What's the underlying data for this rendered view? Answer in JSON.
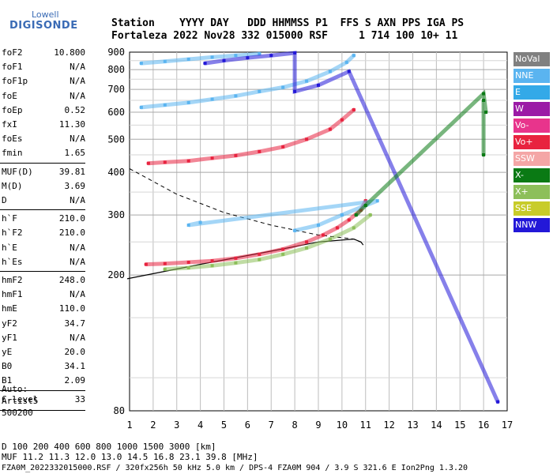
{
  "logo": {
    "brand": "Lowell",
    "product": "DIGISONDE"
  },
  "header": {
    "row1": "Station    YYYY DAY   DDD HHMMSS P1  FFS S AXN PPS IGA PS",
    "row2": "Fortaleza 2022 Nov28 332 015000 RSF     1 714 100 10+ 11"
  },
  "params": {
    "group1": [
      {
        "label": "foF2",
        "value": "10.800"
      },
      {
        "label": "foF1",
        "value": "N/A"
      },
      {
        "label": "foF1p",
        "value": "N/A"
      },
      {
        "label": "foE",
        "value": "N/A"
      },
      {
        "label": "foEp",
        "value": "0.52"
      },
      {
        "label": "fxI",
        "value": "11.30"
      },
      {
        "label": "foEs",
        "value": "N/A"
      },
      {
        "label": "fmin",
        "value": "1.65"
      }
    ],
    "group2": [
      {
        "label": "MUF(D)",
        "value": "39.81"
      },
      {
        "label": "M(D)",
        "value": "3.69"
      },
      {
        "label": "D",
        "value": "N/A"
      }
    ],
    "group3": [
      {
        "label": "h`F",
        "value": "210.0"
      },
      {
        "label": "h`F2",
        "value": "210.0"
      },
      {
        "label": "h`E",
        "value": "N/A"
      },
      {
        "label": "h`Es",
        "value": "N/A"
      }
    ],
    "group4": [
      {
        "label": "hmF2",
        "value": "248.0"
      },
      {
        "label": "hmF1",
        "value": "N/A"
      },
      {
        "label": "hmE",
        "value": "110.0"
      },
      {
        "label": "yF2",
        "value": "34.7"
      },
      {
        "label": "yF1",
        "value": "N/A"
      },
      {
        "label": "yE",
        "value": "20.0"
      },
      {
        "label": "B0",
        "value": "34.1"
      },
      {
        "label": "B1",
        "value": "2.09"
      }
    ],
    "clevel": {
      "label": "C-level",
      "value": "33"
    }
  },
  "autoscale": {
    "line1": "Auto:",
    "line2": "Artist5",
    "line3": "500200"
  },
  "footer": {
    "d_row": "D      100  200  400  600  800 1000 1500 3000 [km]",
    "muf_row": "MUF  11.2 11.3 12.0 13.0 14.5 16.8 23.1 39.8 [MHz]",
    "file_row": "FZA0M_2022332015000.RSF / 320fx256h 50 kHz 5.0 km / DPS-4 FZA0M 904 / 3.9 S 321.6 E  Ion2Png 1.3.20"
  },
  "legend": [
    {
      "name": "NoVal",
      "color": "#808080",
      "text": "#ffffff"
    },
    {
      "name": "NNE",
      "color": "#5ab4f0",
      "text": "#ffffff"
    },
    {
      "name": "E",
      "color": "#33a9e8",
      "text": "#ffffff"
    },
    {
      "name": "W",
      "color": "#9b1aa6",
      "text": "#ffffff"
    },
    {
      "name": "Vo-",
      "color": "#e8348c",
      "text": "#ffffff"
    },
    {
      "name": "Vo+",
      "color": "#e8233f",
      "text": "#ffffff"
    },
    {
      "name": "SSW",
      "color": "#f4a6a6",
      "text": "#ffffff"
    },
    {
      "name": "X-",
      "color": "#0a7a14",
      "text": "#ffffff"
    },
    {
      "name": "X+",
      "color": "#8dbf5a",
      "text": "#ffffff"
    },
    {
      "name": "SSE",
      "color": "#c8cc2a",
      "text": "#ffffff"
    },
    {
      "name": "NNW",
      "color": "#2318d8",
      "text": "#ffffff"
    }
  ],
  "chart_data": {
    "type": "scatter",
    "title": "",
    "xlabel": "",
    "ylabel": "",
    "xlim": [
      1,
      17
    ],
    "ylim": [
      80,
      900
    ],
    "x_ticks": [
      1,
      2,
      3,
      4,
      5,
      6,
      7,
      8,
      9,
      10,
      11,
      12,
      13,
      14,
      15,
      16,
      17
    ],
    "y_ticks": [
      80,
      200,
      300,
      400,
      500,
      600,
      700,
      800,
      900
    ],
    "y_scale": "log",
    "grid": true,
    "series": [
      {
        "name": "Vo+",
        "color": "#e8233f",
        "points": [
          [
            1.7,
            215
          ],
          [
            2.5,
            216
          ],
          [
            3.5,
            218
          ],
          [
            4.5,
            220
          ],
          [
            5.5,
            224
          ],
          [
            6.5,
            230
          ],
          [
            7.5,
            238
          ],
          [
            8.5,
            250
          ],
          [
            9.2,
            262
          ],
          [
            9.8,
            275
          ],
          [
            10.3,
            290
          ],
          [
            10.8,
            310
          ],
          [
            11.0,
            330
          ]
        ]
      },
      {
        "name": "X+",
        "color": "#8dbf5a",
        "points": [
          [
            2.5,
            208
          ],
          [
            3.5,
            210
          ],
          [
            4.5,
            213
          ],
          [
            5.5,
            217
          ],
          [
            6.5,
            222
          ],
          [
            7.5,
            230
          ],
          [
            8.5,
            240
          ],
          [
            9.5,
            255
          ],
          [
            10.5,
            275
          ],
          [
            11.2,
            300
          ]
        ]
      },
      {
        "name": "NNE",
        "color": "#5ab4f0",
        "points": [
          [
            8.0,
            270
          ],
          [
            9.0,
            280
          ],
          [
            10.0,
            300
          ],
          [
            11.0,
            320
          ],
          [
            11.5,
            330
          ],
          [
            3.5,
            280
          ],
          [
            4.0,
            285
          ]
        ]
      },
      {
        "name": "Vo+ (2F)",
        "color": "#e8233f",
        "points": [
          [
            1.8,
            425
          ],
          [
            2.5,
            428
          ],
          [
            3.5,
            432
          ],
          [
            4.5,
            440
          ],
          [
            5.5,
            448
          ],
          [
            6.5,
            460
          ],
          [
            7.5,
            475
          ],
          [
            8.5,
            500
          ],
          [
            9.5,
            535
          ],
          [
            10.0,
            570
          ],
          [
            10.5,
            610
          ]
        ]
      },
      {
        "name": "NNE (3F)",
        "color": "#5ab4f0",
        "points": [
          [
            1.5,
            620
          ],
          [
            2.5,
            630
          ],
          [
            3.5,
            640
          ],
          [
            4.5,
            655
          ],
          [
            5.5,
            670
          ],
          [
            6.5,
            690
          ],
          [
            7.5,
            710
          ],
          [
            8.5,
            740
          ],
          [
            9.5,
            790
          ],
          [
            10.2,
            840
          ],
          [
            10.5,
            880
          ]
        ]
      },
      {
        "name": "NNE (4F)",
        "color": "#5ab4f0",
        "points": [
          [
            1.5,
            835
          ],
          [
            2.5,
            845
          ],
          [
            3.5,
            858
          ],
          [
            4.5,
            870
          ],
          [
            5.5,
            880
          ],
          [
            6.5,
            890
          ]
        ]
      },
      {
        "name": "NNW",
        "color": "#2318d8",
        "points": [
          [
            4.2,
            835
          ],
          [
            5.0,
            850
          ],
          [
            6.0,
            866
          ],
          [
            7.0,
            880
          ],
          [
            8.0,
            895
          ],
          [
            8.0,
            690
          ],
          [
            9.0,
            720
          ],
          [
            10.3,
            790
          ],
          [
            16.6,
            85
          ]
        ]
      },
      {
        "name": "X-",
        "color": "#0a7a14",
        "points": [
          [
            10.6,
            300
          ],
          [
            11.0,
            320
          ],
          [
            16.0,
            680
          ],
          [
            16.1,
            600
          ],
          [
            16.0,
            650
          ],
          [
            16.0,
            450
          ]
        ]
      }
    ],
    "profile_curve": [
      [
        0.9,
        195
      ],
      [
        4,
        215
      ],
      [
        7,
        235
      ],
      [
        9,
        250
      ],
      [
        10.5,
        255
      ],
      [
        10.8,
        250
      ],
      [
        10.9,
        245
      ]
    ],
    "profile_dashed": [
      [
        1.0,
        410
      ],
      [
        3,
        345
      ],
      [
        5,
        305
      ],
      [
        7,
        280
      ],
      [
        9,
        262
      ],
      [
        10.5,
        255
      ],
      [
        10.9,
        248
      ]
    ]
  }
}
